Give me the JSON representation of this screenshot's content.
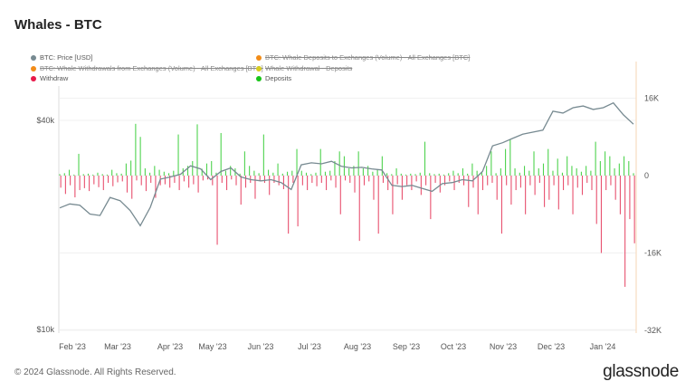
{
  "title": "Whales - BTC",
  "legend": [
    {
      "label": "BTC: Price [USD]",
      "color": "#778a91",
      "active": true
    },
    {
      "label": "BTC: Whale Deposits to Exchanges (Volume) - All Exchanges [BTC]",
      "color": "#f28c18",
      "active": false
    },
    {
      "label": "BTC: Whale Withdrawals from Exchanges (Volume) - All Exchanges [BTC]",
      "color": "#f28c18",
      "active": false
    },
    {
      "label": "Whale Withdrawal - Deposits",
      "color": "#d6cc20",
      "active": false
    },
    {
      "label": "Withdraw",
      "color": "#e8194a",
      "active": true
    },
    {
      "label": "Deposits",
      "color": "#18c418",
      "active": true
    }
  ],
  "footer": "© 2024 Glassnode. All Rights Reserved.",
  "logo": "glassnode",
  "chart_data": {
    "type": "bar+line",
    "title": "Whales - BTC",
    "x_ticks": [
      "Feb '23",
      "Mar '23",
      "Apr '23",
      "May '23",
      "Jun '23",
      "Jul '23",
      "Aug '23",
      "Sep '23",
      "Oct '23",
      "Nov '23",
      "Dec '23",
      "Jan '24"
    ],
    "left_axis": {
      "scale": "log",
      "ticks": [
        "$40k",
        "$10k"
      ],
      "tick_values": [
        40000,
        10000
      ],
      "ylim": [
        10000,
        49000
      ]
    },
    "right_axis": {
      "ticks": [
        "16K",
        "0",
        "-16K",
        "-32K"
      ],
      "tick_values": [
        16000,
        0,
        -16000,
        -32000
      ],
      "ylim": [
        -32000,
        17600
      ]
    },
    "series": [
      {
        "name": "BTC: Price [USD]",
        "type": "line",
        "axis": "left",
        "unit": "kUSD",
        "values": [
          22.4,
          23.0,
          22.8,
          21.5,
          21.3,
          24.0,
          23.5,
          22.0,
          19.9,
          22.5,
          27.1,
          27.5,
          28.0,
          29.6,
          29.0,
          27.0,
          28.5,
          29.2,
          27.5,
          27.0,
          26.8,
          27.0,
          26.5,
          25.3,
          29.8,
          30.2,
          30.0,
          30.5,
          29.5,
          29.2,
          29.3,
          29.0,
          28.8,
          26.0,
          25.8,
          26.0,
          25.5,
          25.0,
          26.3,
          26.5,
          27.0,
          26.8,
          28.5,
          33.8,
          34.5,
          35.5,
          36.5,
          37.0,
          37.5,
          42.5,
          42.0,
          43.5,
          44.0,
          43.0,
          43.5,
          44.9,
          41.5,
          39.0
        ]
      },
      {
        "name": "Deposits",
        "type": "bar",
        "axis": "right",
        "unit": "K BTC",
        "values": [
          0.3,
          0.5,
          1.2,
          0.2,
          4.5,
          0.3,
          0.4,
          0.2,
          0.6,
          0.3,
          0.2,
          1.2,
          0.5,
          0.4,
          2.5,
          3.1,
          10.7,
          8.0,
          1.5,
          0.6,
          2.0,
          1.2,
          0.8,
          0.5,
          1.0,
          8.5,
          1.5,
          2.0,
          3.0,
          10.6,
          1.4,
          2.5,
          3.0,
          0.6,
          8.8,
          1.0,
          2.0,
          1.5,
          0.4,
          5.0,
          2.0,
          1.0,
          0.5,
          8.5,
          1.2,
          0.6,
          2.5,
          0.4,
          0.8,
          1.0,
          5.5,
          1.0,
          0.6,
          0.3,
          0.6,
          5.5,
          0.8,
          1.0,
          3.0,
          5.0,
          4.0,
          1.5,
          2.0,
          5.0,
          1.5,
          2.0,
          0.8,
          1.2,
          4.0,
          0.5,
          0.3,
          1.5,
          0.4,
          0.2,
          0.4,
          0.3,
          0.6,
          7.0,
          0.5,
          0.3,
          0.4,
          0.2,
          0.5,
          1.0,
          0.5,
          1.5,
          0.4,
          2.5,
          1.0,
          0.8,
          2.0,
          5.0,
          0.5,
          1.5,
          5.5,
          7.5,
          1.5,
          0.6,
          2.0,
          1.0,
          5.0,
          1.5,
          2.5,
          5.5,
          1.0,
          3.5,
          0.6,
          4.0,
          2.0,
          1.5,
          0.8,
          2.0,
          1.0,
          7.0,
          3.0,
          5.0,
          4.0,
          1.5,
          2.5,
          4.0,
          3.0,
          0.5
        ]
      },
      {
        "name": "Withdraw",
        "type": "bar",
        "axis": "right",
        "unit": "K BTC",
        "values": [
          -2.5,
          -3.8,
          -2.0,
          -4.5,
          -3.0,
          -2.6,
          -3.2,
          -1.8,
          -2.4,
          -3.0,
          -1.5,
          -2.2,
          -1.4,
          -1.2,
          -3.5,
          -4.8,
          -1.0,
          -2.0,
          -3.2,
          -1.5,
          -4.6,
          -2.0,
          -1.8,
          -2.5,
          -1.5,
          -3.0,
          -1.2,
          -2.5,
          -1.8,
          -3.5,
          -1.0,
          -0.8,
          -2.0,
          -14.3,
          -1.5,
          -3.0,
          -0.8,
          -2.0,
          -6.0,
          -2.5,
          -1.5,
          -4.8,
          -1.2,
          -1.5,
          -4.0,
          -1.5,
          -2.0,
          -2.8,
          -12.0,
          -1.5,
          -10.5,
          -2.0,
          -3.0,
          -1.5,
          -2.2,
          -1.5,
          -3.0,
          -1.0,
          -2.5,
          -8.0,
          -1.0,
          -1.5,
          -3.5,
          -13.5,
          -2.0,
          -1.2,
          -5.0,
          -12.0,
          -1.5,
          -3.0,
          -8.0,
          -1.8,
          -5.0,
          -2.0,
          -3.0,
          -1.2,
          -4.0,
          -2.0,
          -9.0,
          -1.5,
          -3.5,
          -2.0,
          -1.2,
          -3.0,
          -1.5,
          -2.0,
          -6.5,
          -2.5,
          -8.0,
          -3.0,
          -2.0,
          -1.5,
          -5.0,
          -12.0,
          -2.0,
          -6.0,
          -3.0,
          -2.5,
          -8.0,
          -2.0,
          -4.0,
          -1.5,
          -6.5,
          -5.0,
          -2.0,
          -7.0,
          -3.0,
          -2.0,
          -8.0,
          -2.5,
          -4.0,
          -1.5,
          -3.0,
          -10.0,
          -16.0,
          -3.0,
          -2.0,
          -5.0,
          -8.0,
          -23.0,
          -9.0,
          -14.0
        ]
      }
    ]
  }
}
